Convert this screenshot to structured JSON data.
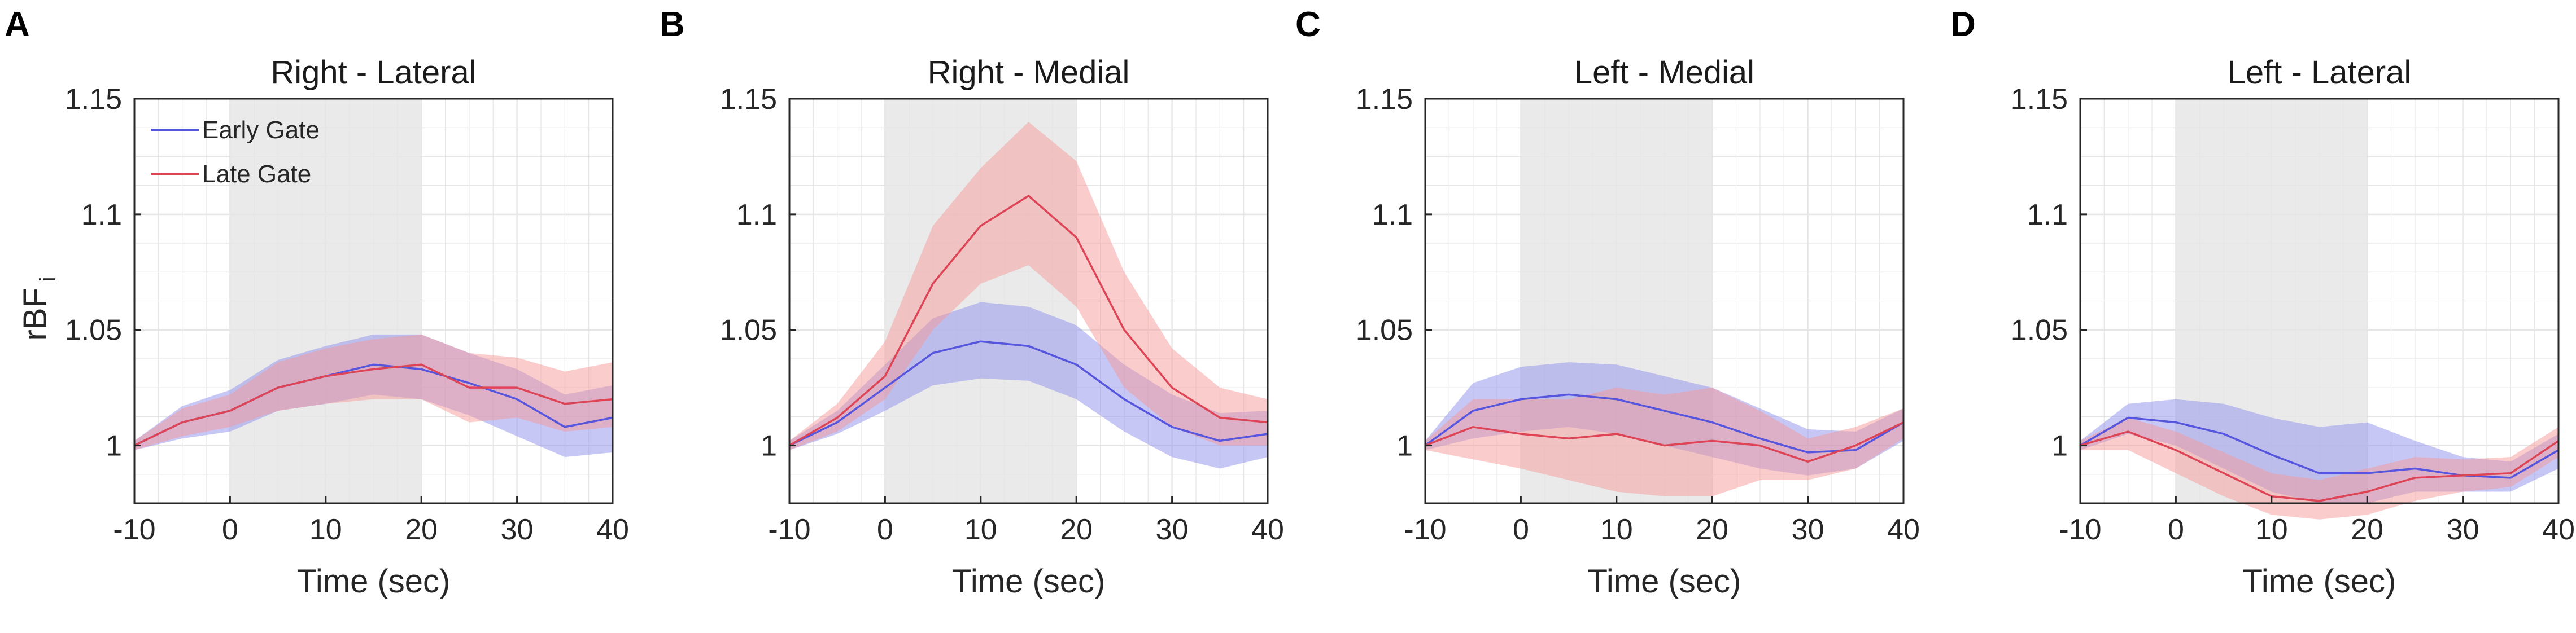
{
  "colors": {
    "early_line": "#5555dd",
    "early_band": "#8f8fee",
    "late_line": "#dd4455",
    "late_band": "#f59a9a",
    "stim_shade": "#d9d9d9",
    "grid": "#e6e6e6",
    "axis": "#262626"
  },
  "chart_data": [
    {
      "type": "line",
      "panel_letter": "A",
      "title": "Right - Lateral",
      "xlabel": "Time (sec)",
      "ylabel": "rBF",
      "ylabel_sub": "i",
      "xlim": [
        -10,
        40
      ],
      "ylim": [
        0.975,
        1.15
      ],
      "xticks": [
        -10,
        0,
        10,
        20,
        30,
        40
      ],
      "yticks": [
        1,
        1.05,
        1.1,
        1.15
      ],
      "xtick_labels": [
        "-10",
        "0",
        "10",
        "20",
        "30",
        "40"
      ],
      "ytick_labels": [
        "1",
        "1.05",
        "1.1",
        "1.15"
      ],
      "grid": true,
      "shaded_interval": [
        0,
        20
      ],
      "legend": {
        "location": "top-left",
        "entries": [
          "Early Gate",
          "Late Gate"
        ]
      },
      "x": [
        -10,
        -5,
        0,
        5,
        10,
        15,
        20,
        25,
        30,
        35,
        40
      ],
      "series": [
        {
          "name": "Early Gate",
          "values": [
            1.0,
            1.01,
            1.015,
            1.025,
            1.03,
            1.035,
            1.033,
            1.027,
            1.02,
            1.008,
            1.012
          ],
          "lower": [
            0.998,
            1.003,
            1.006,
            1.015,
            1.018,
            1.022,
            1.02,
            1.013,
            1.004,
            0.995,
            0.997
          ],
          "upper": [
            1.002,
            1.017,
            1.024,
            1.037,
            1.043,
            1.048,
            1.048,
            1.04,
            1.033,
            1.022,
            1.026
          ]
        },
        {
          "name": "Late Gate",
          "values": [
            1.0,
            1.01,
            1.015,
            1.025,
            1.03,
            1.033,
            1.035,
            1.025,
            1.025,
            1.018,
            1.02
          ],
          "lower": [
            0.998,
            1.004,
            1.008,
            1.015,
            1.018,
            1.02,
            1.02,
            1.01,
            1.012,
            1.006,
            1.008
          ],
          "upper": [
            1.002,
            1.016,
            1.022,
            1.036,
            1.042,
            1.046,
            1.048,
            1.04,
            1.038,
            1.032,
            1.036
          ]
        }
      ]
    },
    {
      "type": "line",
      "panel_letter": "B",
      "title": "Right - Medial",
      "xlabel": "Time (sec)",
      "xlim": [
        -10,
        40
      ],
      "ylim": [
        0.975,
        1.15
      ],
      "xticks": [
        -10,
        0,
        10,
        20,
        30,
        40
      ],
      "yticks": [
        1,
        1.05,
        1.1,
        1.15
      ],
      "xtick_labels": [
        "-10",
        "0",
        "10",
        "20",
        "30",
        "40"
      ],
      "ytick_labels": [
        "1",
        "1.05",
        "1.1",
        "1.15"
      ],
      "grid": true,
      "shaded_interval": [
        0,
        20
      ],
      "x": [
        -10,
        -5,
        0,
        5,
        10,
        15,
        20,
        25,
        30,
        35,
        40
      ],
      "series": [
        {
          "name": "Early Gate",
          "values": [
            1.0,
            1.01,
            1.025,
            1.04,
            1.045,
            1.043,
            1.035,
            1.02,
            1.008,
            1.002,
            1.005
          ],
          "lower": [
            0.998,
            1.005,
            1.015,
            1.026,
            1.029,
            1.028,
            1.02,
            1.006,
            0.995,
            0.99,
            0.995
          ],
          "upper": [
            1.002,
            1.015,
            1.035,
            1.055,
            1.062,
            1.06,
            1.052,
            1.035,
            1.022,
            1.014,
            1.015
          ]
        },
        {
          "name": "Late Gate",
          "values": [
            1.0,
            1.012,
            1.03,
            1.07,
            1.095,
            1.108,
            1.09,
            1.05,
            1.025,
            1.012,
            1.01
          ],
          "lower": [
            0.998,
            1.006,
            1.02,
            1.05,
            1.07,
            1.078,
            1.06,
            1.025,
            1.008,
            1.0,
            1.0
          ],
          "upper": [
            1.002,
            1.018,
            1.045,
            1.095,
            1.12,
            1.14,
            1.123,
            1.075,
            1.042,
            1.025,
            1.02
          ]
        }
      ]
    },
    {
      "type": "line",
      "panel_letter": "C",
      "title": "Left - Medial",
      "xlabel": "Time (sec)",
      "xlim": [
        -10,
        40
      ],
      "ylim": [
        0.975,
        1.15
      ],
      "xticks": [
        -10,
        0,
        10,
        20,
        30,
        40
      ],
      "yticks": [
        1,
        1.05,
        1.1,
        1.15
      ],
      "xtick_labels": [
        "-10",
        "0",
        "10",
        "20",
        "30",
        "40"
      ],
      "ytick_labels": [
        "1",
        "1.05",
        "1.1",
        "1.15"
      ],
      "grid": true,
      "shaded_interval": [
        0,
        20
      ],
      "x": [
        -10,
        -5,
        0,
        5,
        10,
        15,
        20,
        25,
        30,
        35,
        40
      ],
      "series": [
        {
          "name": "Early Gate",
          "values": [
            1.0,
            1.015,
            1.02,
            1.022,
            1.02,
            1.015,
            1.01,
            1.003,
            0.997,
            0.998,
            1.01
          ],
          "lower": [
            0.998,
            1.003,
            1.006,
            1.008,
            1.005,
            1.0,
            0.995,
            0.99,
            0.987,
            0.99,
            1.002
          ],
          "upper": [
            1.002,
            1.027,
            1.034,
            1.036,
            1.035,
            1.03,
            1.025,
            1.016,
            1.007,
            1.006,
            1.016
          ]
        },
        {
          "name": "Late Gate",
          "values": [
            1.0,
            1.008,
            1.005,
            1.003,
            1.005,
            1.0,
            1.002,
            1.0,
            0.993,
            1.0,
            1.01
          ],
          "lower": [
            0.998,
            0.994,
            0.99,
            0.985,
            0.98,
            0.978,
            0.978,
            0.985,
            0.985,
            0.99,
            1.003
          ],
          "upper": [
            1.002,
            1.02,
            1.02,
            1.02,
            1.025,
            1.022,
            1.025,
            1.015,
            1.003,
            1.008,
            1.016
          ]
        }
      ]
    },
    {
      "type": "line",
      "panel_letter": "D",
      "title": "Left - Lateral",
      "xlabel": "Time (sec)",
      "xlim": [
        -10,
        40
      ],
      "ylim": [
        0.975,
        1.15
      ],
      "xticks": [
        -10,
        0,
        10,
        20,
        30,
        40
      ],
      "yticks": [
        1,
        1.05,
        1.1,
        1.15
      ],
      "xtick_labels": [
        "-10",
        "0",
        "10",
        "20",
        "30",
        "40"
      ],
      "ytick_labels": [
        "1",
        "1.05",
        "1.1",
        "1.15"
      ],
      "grid": true,
      "shaded_interval": [
        0,
        20
      ],
      "x": [
        -10,
        -5,
        0,
        5,
        10,
        15,
        20,
        25,
        30,
        35,
        40
      ],
      "series": [
        {
          "name": "Early Gate",
          "values": [
            1.0,
            1.012,
            1.01,
            1.005,
            0.996,
            0.988,
            0.988,
            0.99,
            0.987,
            0.986,
            0.998
          ],
          "lower": [
            0.998,
            1.005,
            1.0,
            0.99,
            0.98,
            0.975,
            0.975,
            0.98,
            0.98,
            0.98,
            0.99
          ],
          "upper": [
            1.002,
            1.018,
            1.02,
            1.018,
            1.012,
            1.008,
            1.01,
            1.002,
            0.995,
            0.993,
            1.005
          ]
        },
        {
          "name": "Late Gate",
          "values": [
            1.0,
            1.006,
            0.998,
            0.988,
            0.978,
            0.976,
            0.98,
            0.986,
            0.987,
            0.988,
            1.002
          ],
          "lower": [
            0.998,
            0.998,
            0.988,
            0.978,
            0.97,
            0.968,
            0.97,
            0.976,
            0.98,
            0.982,
            0.995
          ],
          "upper": [
            1.002,
            1.012,
            1.006,
            0.997,
            0.988,
            0.985,
            0.99,
            0.995,
            0.994,
            0.995,
            1.008
          ]
        }
      ]
    }
  ]
}
